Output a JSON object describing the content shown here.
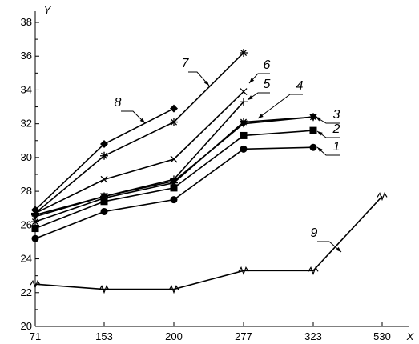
{
  "chart_data": {
    "type": "line",
    "categories": [
      "71",
      "153",
      "200",
      "277",
      "323",
      "530"
    ],
    "xlabel": "X",
    "ylabel": "Y",
    "ylim": [
      20,
      38
    ],
    "yticks": [
      20,
      22,
      24,
      26,
      28,
      30,
      32,
      34,
      36,
      38
    ],
    "grid": false,
    "series": [
      {
        "name": "1",
        "marker": "circle",
        "values": [
          25.2,
          26.8,
          27.5,
          30.5,
          30.6,
          null
        ]
      },
      {
        "name": "2",
        "marker": "square",
        "values": [
          25.8,
          27.4,
          28.2,
          31.3,
          31.6,
          null
        ]
      },
      {
        "name": "3",
        "marker": "asterisk",
        "values": [
          26.2,
          27.6,
          28.5,
          32.1,
          32.4,
          null
        ]
      },
      {
        "name": "4",
        "marker": "triangle",
        "values": [
          26.5,
          27.7,
          28.6,
          32.0,
          32.4,
          null
        ]
      },
      {
        "name": "5",
        "marker": "plus",
        "values": [
          26.6,
          27.7,
          28.7,
          33.3,
          null,
          null
        ]
      },
      {
        "name": "6",
        "marker": "cross",
        "values": [
          26.7,
          28.7,
          29.9,
          33.9,
          null,
          null
        ]
      },
      {
        "name": "7",
        "marker": "asterisk",
        "values": [
          26.7,
          30.1,
          32.1,
          36.2,
          null,
          null
        ]
      },
      {
        "name": "8",
        "marker": "diamond",
        "values": [
          26.9,
          30.8,
          32.9,
          null,
          null,
          null
        ]
      },
      {
        "name": "9",
        "marker": "zigzag",
        "values": [
          22.5,
          22.2,
          22.2,
          23.3,
          23.3,
          27.7
        ]
      }
    ]
  }
}
